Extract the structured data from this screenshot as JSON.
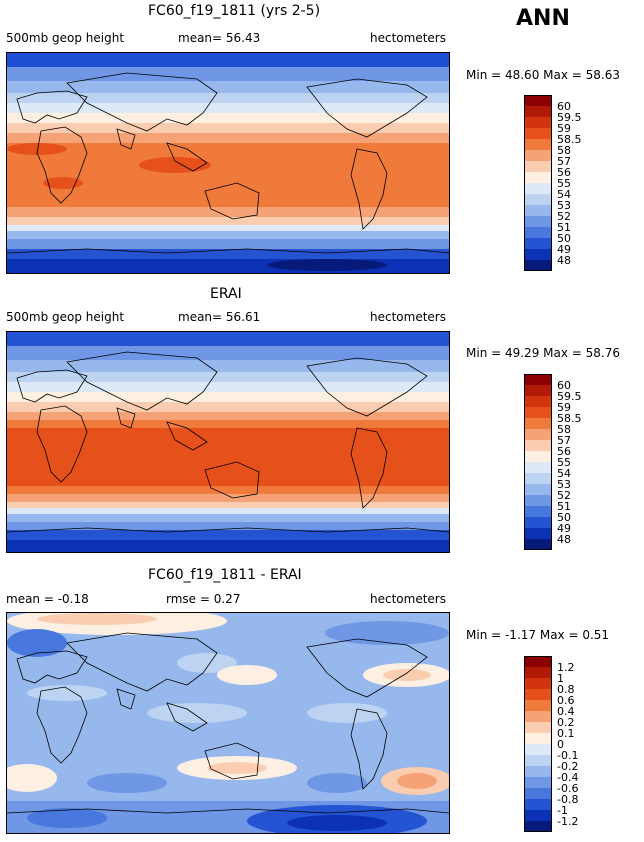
{
  "header": {
    "season": "ANN"
  },
  "panels": [
    {
      "title": "FC60_f19_1811 (yrs 2-5)",
      "left_label": "500mb geop height",
      "center_label": "mean=  56.43",
      "right_label": "hectometers",
      "stats": "Min =  48.60 Max =  58.63",
      "colorbar_labels": [
        "60",
        "59.5",
        "59",
        "58.5",
        "58",
        "57",
        "56",
        "55",
        "54",
        "53",
        "52",
        "51",
        "50",
        "49",
        "48"
      ],
      "colorbar_colors": [
        "#8b0000",
        "#b11a07",
        "#d2350e",
        "#e6501a",
        "#f07a3c",
        "#f5a276",
        "#fbcdb0",
        "#fdf0e3",
        "#dde9f7",
        "#bcd3f2",
        "#97b8ec",
        "#6f97e5",
        "#4878dd",
        "#2454d2",
        "#0b32b4",
        "#051a7a"
      ]
    },
    {
      "title": "ERAI",
      "left_label": "500mb geop height",
      "center_label": "mean=  56.61",
      "right_label": "hectometers",
      "stats": "Min =  49.29 Max =  58.76",
      "colorbar_labels": [
        "60",
        "59.5",
        "59",
        "58.5",
        "58",
        "57",
        "56",
        "55",
        "54",
        "53",
        "52",
        "51",
        "50",
        "49",
        "48"
      ],
      "colorbar_colors": [
        "#8b0000",
        "#b11a07",
        "#d2350e",
        "#e6501a",
        "#f07a3c",
        "#f5a276",
        "#fbcdb0",
        "#fdf0e3",
        "#dde9f7",
        "#bcd3f2",
        "#97b8ec",
        "#6f97e5",
        "#4878dd",
        "#2454d2",
        "#0b32b4",
        "#051a7a"
      ]
    },
    {
      "title": "FC60_f19_1811 - ERAI",
      "left_label": "mean =  -0.18",
      "center_label": "rmse =   0.27",
      "right_label": "hectometers",
      "stats": "Min =  -1.17 Max =    0.51",
      "colorbar_labels": [
        "1.2",
        "1",
        "0.8",
        "0.6",
        "0.4",
        "0.2",
        "0.1",
        "0",
        "-0.1",
        "-0.2",
        "-0.4",
        "-0.6",
        "-0.8",
        "-1",
        "-1.2"
      ],
      "colorbar_colors": [
        "#8b0000",
        "#b11a07",
        "#d2350e",
        "#e6501a",
        "#f07a3c",
        "#f5a276",
        "#fbcdb0",
        "#fdf0e3",
        "#dde9f7",
        "#bcd3f2",
        "#97b8ec",
        "#6f97e5",
        "#4878dd",
        "#2454d2",
        "#0b32b4",
        "#051a7a"
      ]
    }
  ]
}
